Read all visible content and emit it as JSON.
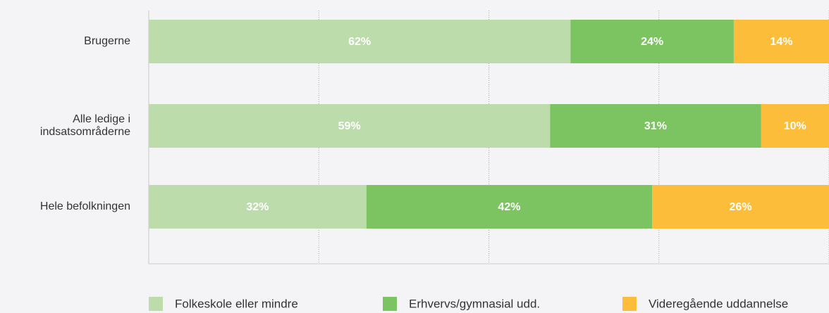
{
  "chart_data": {
    "type": "stacked_bar_horizontal",
    "categories": [
      "Brugerne",
      "Alle ledige i indsatsområderne",
      "Hele befolkningen"
    ],
    "series": [
      {
        "name": "Folkeskole eller mindre",
        "color": "#bddcab",
        "values": [
          62,
          59,
          32
        ],
        "value_labels": [
          "62%",
          "59%",
          "32%"
        ]
      },
      {
        "name": "Erhvervs/gymnasial udd.",
        "color": "#7cc462",
        "values": [
          24,
          31,
          42
        ],
        "value_labels": [
          "24%",
          "31%",
          "42%"
        ]
      },
      {
        "name": "Videregående uddannelse",
        "color": "#fcbd3b",
        "values": [
          14,
          10,
          26
        ],
        "value_labels": [
          "14%",
          "10%",
          "26%"
        ]
      }
    ],
    "xlim": [
      0,
      100
    ],
    "xticks": [
      0,
      25,
      50,
      75,
      100
    ],
    "grid": true,
    "legend": "bottom"
  }
}
